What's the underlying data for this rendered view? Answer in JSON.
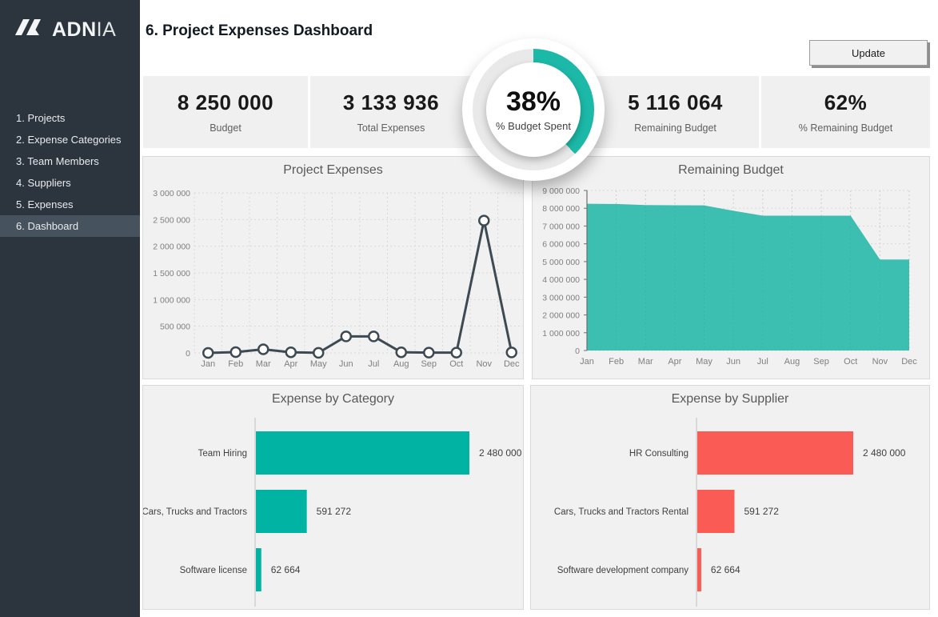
{
  "brand": {
    "logo_bold": "ADN",
    "logo_light": "IA"
  },
  "sidebar": {
    "items": [
      {
        "label": "1. Projects",
        "active": false
      },
      {
        "label": "2. Expense Categories",
        "active": false
      },
      {
        "label": "3. Team Members",
        "active": false
      },
      {
        "label": "4. Suppliers",
        "active": false
      },
      {
        "label": "5. Expenses",
        "active": false
      },
      {
        "label": "6. Dashboard",
        "active": true
      }
    ]
  },
  "header": {
    "title": "6. Project Expenses Dashboard",
    "update_button": "Update"
  },
  "kpis": [
    {
      "value": "8 250 000",
      "label": "Budget"
    },
    {
      "value": "3 133 936",
      "label": "Total Expenses"
    },
    {
      "value": "5 116 064",
      "label": "Remaining Budget"
    },
    {
      "value": "62%",
      "label": "% Remaining Budget"
    }
  ],
  "gauge": {
    "value": "38%",
    "label": "% Budget Spent",
    "percent": 38
  },
  "colors": {
    "sidebar_bg": "#2c353e",
    "sidebar_active": "#46525d",
    "teal": "#00b3a2",
    "teal_area": "#3cbfb1",
    "gauge_teal": "#1cb9a8",
    "gauge_track": "#e9e9e9",
    "red": "#fb5b55",
    "panel_bg": "#f1f1f2",
    "panel_border": "#d9d9d9",
    "line": "#3e4a52",
    "grid": "#d9d9d9",
    "axis_text": "#7f7f7f",
    "title_text": "#595959",
    "axis_line": "#6e6e6e"
  },
  "chart_data": [
    {
      "type": "line",
      "title": "Project Expenses",
      "categories": [
        "Jan",
        "Feb",
        "Mar",
        "Apr",
        "May",
        "Jun",
        "Jul",
        "Aug",
        "Sep",
        "Oct",
        "Nov",
        "Dec"
      ],
      "values": [
        0,
        15000,
        68000,
        12000,
        2000,
        310000,
        310000,
        12000,
        5000,
        5000,
        2480000,
        10000
      ],
      "ylim": [
        0,
        3000000
      ],
      "ytick_step": 500000,
      "grid": true,
      "legend": "none"
    },
    {
      "type": "area",
      "title": "Remaining Budget",
      "categories": [
        "Jan",
        "Feb",
        "Mar",
        "Apr",
        "May",
        "Jun",
        "Jul",
        "Aug",
        "Sep",
        "Oct",
        "Nov",
        "Dec"
      ],
      "values": [
        8250000,
        8240000,
        8180000,
        8170000,
        8160000,
        7860000,
        7580000,
        7580000,
        7580000,
        7580000,
        5120000,
        5116064
      ],
      "ylim": [
        0,
        9000000
      ],
      "ytick_step": 1000000,
      "grid": true,
      "legend": "none"
    },
    {
      "type": "bar",
      "orientation": "horizontal",
      "title": "Expense by Category",
      "categories": [
        "Team Hiring",
        "Cars, Trucks and Tractors",
        "Software license"
      ],
      "values": [
        2480000,
        591272,
        62664
      ],
      "value_labels": [
        "2 480 000",
        "591 272",
        "62 664"
      ],
      "xlim": [
        0,
        2750000
      ],
      "color_key": "teal",
      "grid": false,
      "legend": "none"
    },
    {
      "type": "bar",
      "orientation": "horizontal",
      "title": "Expense by Supplier",
      "categories": [
        "HR Consulting",
        "Cars, Trucks and Tractors Rental",
        "Software development company"
      ],
      "values": [
        2480000,
        591272,
        62664
      ],
      "value_labels": [
        "2 480 000",
        "591 272",
        "62 664"
      ],
      "xlim": [
        0,
        2750000
      ],
      "color_key": "red",
      "grid": false,
      "legend": "none"
    }
  ]
}
